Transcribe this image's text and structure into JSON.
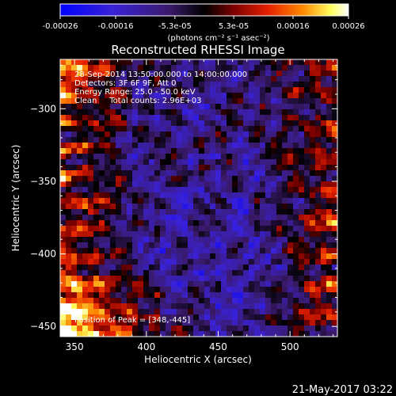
{
  "colorbar": {
    "ticks": [
      "-0.00026",
      "-0.00016",
      "-5.3e-05",
      "5.3e-05",
      "0.00016",
      "0.00026"
    ],
    "tick_values": [
      -0.00026,
      -0.00016,
      -5.3e-05,
      5.3e-05,
      0.00016,
      0.00026
    ],
    "range": [
      -0.00026,
      0.00026
    ],
    "unit_label": "(photons cm⁻² s⁻¹ asec⁻²)",
    "colors": [
      "#0000ff",
      "#5a1fb5",
      "#000000",
      "#7a0000",
      "#e52000",
      "#ff8800",
      "#ffff60",
      "#ffffff"
    ]
  },
  "chart_data": {
    "type": "heatmap",
    "title": "Reconstructed RHESSI Image",
    "xlabel": "Heliocentric X (arcsec)",
    "ylabel": "Heliocentric Y (arcsec)",
    "xlim": [
      340,
      533
    ],
    "ylim": [
      -457,
      -266
    ],
    "x_ticks": [
      350,
      400,
      450,
      500
    ],
    "y_ticks": [
      -300,
      -350,
      -400,
      -450
    ],
    "annotations": [
      "28-Sep-2014 13:50:00.000 to 14:00:00.000",
      "Detectors: 3F 6F 9F, Att 0",
      "Energy Range: 25.0 - 50.0 keV",
      "Clean     Total counts: 2.96E+03"
    ],
    "peak_label": "Position of Peak = [348,-445]",
    "peak_position": [
      348,
      -445
    ],
    "total_counts": 2960,
    "energy_range_keV": [
      25.0,
      50.0
    ]
  },
  "footer": {
    "timestamp": "21-May-2017 03:22"
  }
}
